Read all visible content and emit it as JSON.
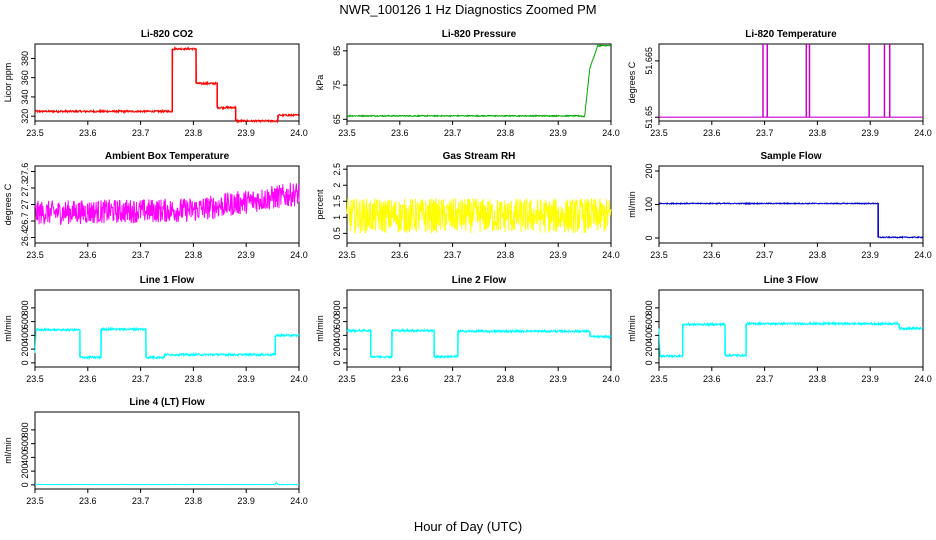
{
  "title": "NWR_100126  1 Hz Diagnostics Zoomed PM",
  "xlabel": "Hour of Day (UTC)",
  "chart_data": [
    {
      "type": "line",
      "title": "Li-820 CO2",
      "ylabel": "Licor ppm",
      "color": "#ff0000",
      "xlim": [
        23.5,
        24.0
      ],
      "ylim": [
        315,
        395
      ],
      "yticks": [
        320,
        340,
        360,
        380
      ],
      "xticks": [
        "23.5",
        "23.6",
        "23.7",
        "23.8",
        "23.9",
        "24.0"
      ],
      "x": [
        23.5,
        23.76,
        23.76,
        23.805,
        23.805,
        23.845,
        23.845,
        23.88,
        23.88,
        23.96,
        23.96,
        24.0
      ],
      "values": [
        325,
        325,
        390,
        390,
        354,
        354,
        329,
        329,
        315,
        315,
        321,
        321
      ],
      "noise": 1
    },
    {
      "type": "line",
      "title": "Li-820 Pressure",
      "ylabel": "kPa",
      "color": "#00aa00",
      "xlim": [
        23.5,
        24.0
      ],
      "ylim": [
        64.5,
        87
      ],
      "yticks": [
        65,
        75,
        85
      ],
      "xticks": [
        "23.5",
        "23.6",
        "23.7",
        "23.8",
        "23.9",
        "24.0"
      ],
      "x": [
        23.5,
        23.94,
        23.95,
        23.96,
        23.975,
        24.0
      ],
      "values": [
        66.0,
        66.0,
        65.8,
        80,
        86.5,
        86.5
      ],
      "noise": 0.15
    },
    {
      "type": "line",
      "title": "Li-820 Temperature",
      "ylabel": "degrees C",
      "color": "#cc00cc",
      "xlim": [
        23.5,
        24.0
      ],
      "ylim": [
        51.649,
        51.6695
      ],
      "yticks": [
        51.65,
        51.665
      ],
      "xticks": [
        "23.5",
        "23.6",
        "23.7",
        "23.8",
        "23.9",
        "24.0"
      ],
      "x": [
        23.5,
        24.0
      ],
      "values": [
        51.65,
        51.65
      ],
      "spikes": [
        23.697,
        23.705,
        23.779,
        23.785,
        23.898,
        23.927,
        23.937
      ],
      "spike_top": 51.6695,
      "noise": 0
    },
    {
      "type": "line",
      "title": "Ambient Box Temperature",
      "ylabel": "degrees C",
      "color": "#ff00ff",
      "xlim": [
        23.5,
        24.0
      ],
      "ylim": [
        26.3,
        27.7
      ],
      "yticks": [
        26.4,
        26.7,
        27.0,
        27.3,
        27.6
      ],
      "xticks": [
        "23.5",
        "23.6",
        "23.7",
        "23.8",
        "23.9",
        "24.0"
      ],
      "x": [
        23.5,
        23.8,
        24.0
      ],
      "values": [
        26.85,
        26.9,
        27.2
      ],
      "noise": 0.22
    },
    {
      "type": "line",
      "title": "Gas Stream RH",
      "ylabel": "percent",
      "color": "#ffff00",
      "xlim": [
        23.5,
        24.0
      ],
      "ylim": [
        0.2,
        2.6
      ],
      "yticks": [
        0.5,
        1.0,
        1.5,
        2.0,
        2.5
      ],
      "xticks": [
        "23.5",
        "23.6",
        "23.7",
        "23.8",
        "23.9",
        "24.0"
      ],
      "x": [
        23.5,
        24.0
      ],
      "values": [
        1.05,
        1.05
      ],
      "noise": 0.55
    },
    {
      "type": "line",
      "title": "Sample Flow",
      "ylabel": "ml/min",
      "color": "#0000cc",
      "xlim": [
        23.5,
        24.0
      ],
      "ylim": [
        -15,
        215
      ],
      "yticks": [
        0,
        100,
        200
      ],
      "xticks": [
        "23.5",
        "23.6",
        "23.7",
        "23.8",
        "23.9",
        "24.0"
      ],
      "x": [
        23.5,
        23.915,
        23.915,
        24.0
      ],
      "values": [
        103,
        103,
        2,
        2
      ],
      "noise": 1.5
    },
    {
      "type": "line",
      "title": "Line 1 Flow",
      "ylabel": "ml/min",
      "color": "#00ffff",
      "xlim": [
        23.5,
        24.0
      ],
      "ylim": [
        -60,
        1060
      ],
      "yticks": [
        0,
        200,
        400,
        600,
        800
      ],
      "xticks": [
        "23.5",
        "23.6",
        "23.7",
        "23.8",
        "23.9",
        "24.0"
      ],
      "x": [
        23.5,
        23.502,
        23.585,
        23.585,
        23.625,
        23.625,
        23.71,
        23.71,
        23.745,
        23.745,
        23.955,
        23.955,
        24.0
      ],
      "values": [
        150,
        480,
        480,
        80,
        80,
        490,
        490,
        80,
        80,
        120,
        120,
        400,
        400
      ],
      "noise": 15
    },
    {
      "type": "line",
      "title": "Line 2 Flow",
      "ylabel": "ml/min",
      "color": "#00ffff",
      "xlim": [
        23.5,
        24.0
      ],
      "ylim": [
        -60,
        1060
      ],
      "yticks": [
        0,
        200,
        400,
        600,
        800
      ],
      "xticks": [
        "23.5",
        "23.6",
        "23.7",
        "23.8",
        "23.9",
        "24.0"
      ],
      "x": [
        23.5,
        23.545,
        23.545,
        23.585,
        23.585,
        23.665,
        23.665,
        23.71,
        23.71,
        23.96,
        23.96,
        24.0
      ],
      "values": [
        470,
        470,
        90,
        90,
        470,
        470,
        90,
        90,
        460,
        460,
        380,
        380
      ],
      "noise": 15
    },
    {
      "type": "line",
      "title": "Line 3 Flow",
      "ylabel": "ml/min",
      "color": "#00ffff",
      "xlim": [
        23.5,
        24.0
      ],
      "ylim": [
        -60,
        1060
      ],
      "yticks": [
        0,
        200,
        400,
        600,
        800
      ],
      "xticks": [
        "23.5",
        "23.6",
        "23.7",
        "23.8",
        "23.9",
        "24.0"
      ],
      "x": [
        23.5,
        23.502,
        23.545,
        23.545,
        23.625,
        23.625,
        23.665,
        23.665,
        23.955,
        23.955,
        24.0
      ],
      "values": [
        500,
        100,
        100,
        560,
        560,
        110,
        110,
        570,
        570,
        500,
        500
      ],
      "noise": 15
    },
    {
      "type": "line",
      "title": "Line 4 (LT) Flow",
      "ylabel": "ml/min",
      "color": "#00ffff",
      "xlim": [
        23.5,
        24.0
      ],
      "ylim": [
        -60,
        1060
      ],
      "yticks": [
        0,
        200,
        400,
        600,
        800
      ],
      "xticks": [
        "23.5",
        "23.6",
        "23.7",
        "23.8",
        "23.9",
        "24.0"
      ],
      "x": [
        23.5,
        23.955,
        23.957,
        23.96,
        24.0
      ],
      "values": [
        5,
        5,
        40,
        5,
        5
      ],
      "noise": 2
    }
  ]
}
